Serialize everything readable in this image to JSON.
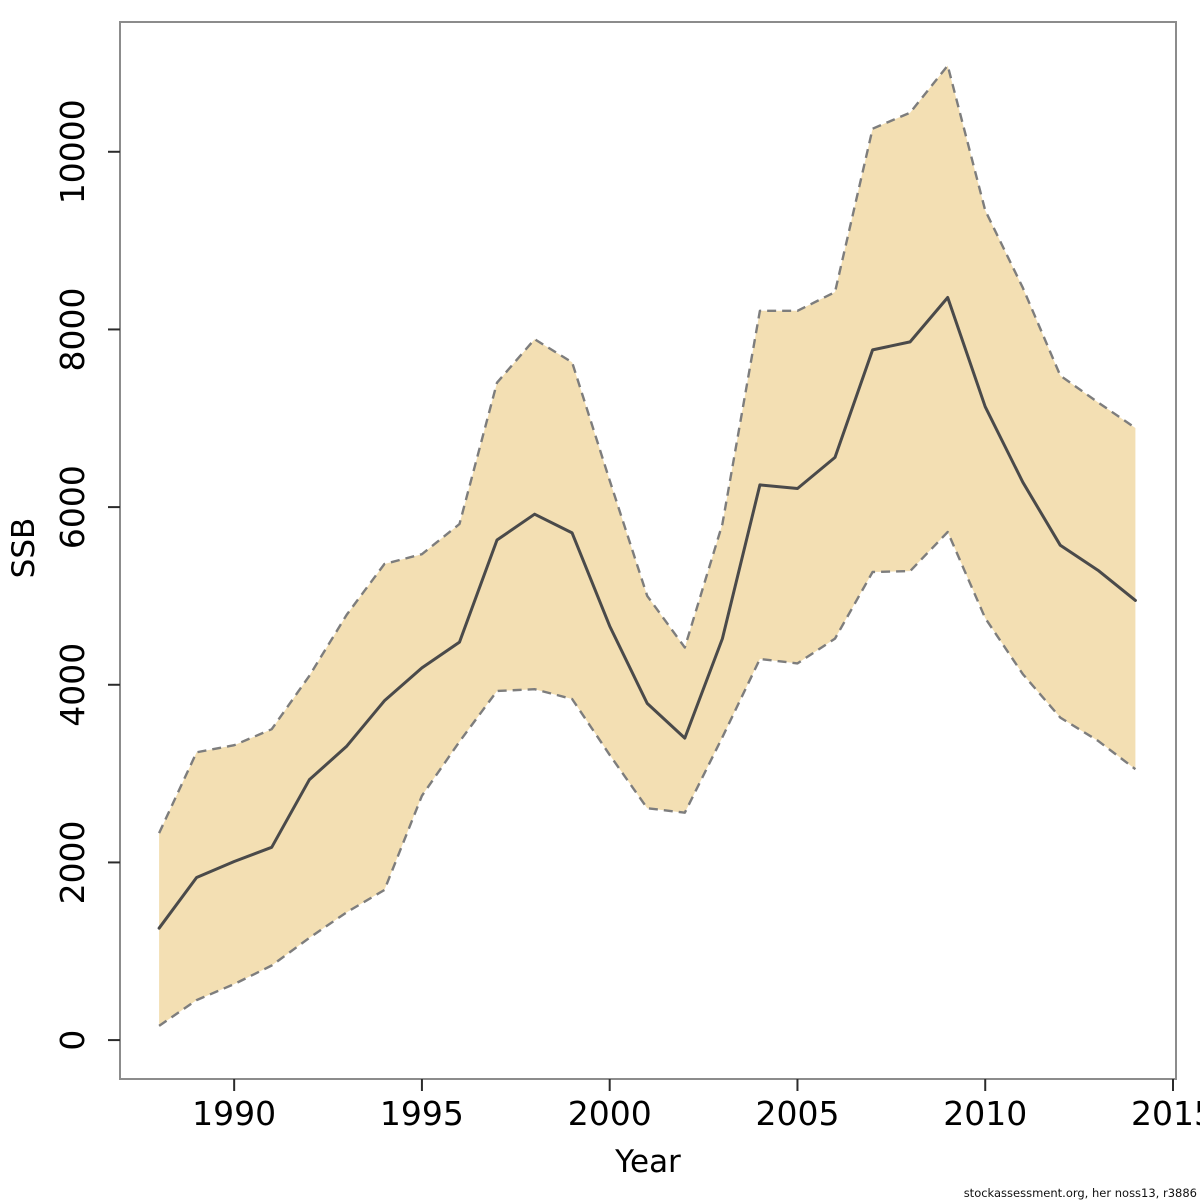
{
  "footer": {
    "text": "stockassessment.org, her noss13, r3886"
  },
  "chart_data": {
    "type": "line",
    "title": "",
    "xlabel": "Year",
    "ylabel": "SSB",
    "grid": false,
    "legend": "none",
    "x": [
      1988,
      1989,
      1990,
      1991,
      1992,
      1993,
      1994,
      1995,
      1996,
      1997,
      1998,
      1999,
      2000,
      2001,
      2002,
      2003,
      2004,
      2005,
      2006,
      2007,
      2008,
      2009,
      2010,
      2011,
      2012,
      2013,
      2014
    ],
    "series": [
      {
        "name": "SSB estimate",
        "style": "solid",
        "values": [
          1260,
          1830,
          2010,
          2170,
          2930,
          3310,
          3820,
          4190,
          4480,
          5630,
          5920,
          5710,
          4660,
          3790,
          3400,
          4520,
          6250,
          6210,
          6560,
          7770,
          7860,
          8360,
          7130,
          6280,
          5570,
          5290,
          4950
        ]
      },
      {
        "name": "confidence lower",
        "style": "dashed",
        "values": [
          160,
          450,
          630,
          840,
          1150,
          1440,
          1690,
          2750,
          3360,
          3930,
          3950,
          3840,
          3210,
          2610,
          2560,
          3410,
          4290,
          4240,
          4520,
          5270,
          5280,
          5720,
          4750,
          4120,
          3630,
          3370,
          3050
        ]
      },
      {
        "name": "confidence upper",
        "style": "dashed",
        "values": [
          2330,
          3240,
          3320,
          3500,
          4100,
          4790,
          5360,
          5470,
          5810,
          7400,
          7890,
          7630,
          6300,
          5000,
          4420,
          5810,
          8210,
          8210,
          8420,
          10260,
          10440,
          10970,
          9340,
          8470,
          7480,
          7180,
          6890
        ]
      }
    ],
    "x_ticks": [
      1990,
      1995,
      2000,
      2005,
      2010,
      2015
    ],
    "y_ticks": [
      0,
      2000,
      4000,
      6000,
      8000,
      10000
    ],
    "xlim": [
      1986.96,
      2015.08
    ],
    "ylim": [
      -438,
      11461
    ],
    "band_color": "#f3dfb3",
    "line_color": "#4a4a4a",
    "dash_color": "#7d7d7d",
    "box_color": "#8c8c8c",
    "tick_color": "#2b2b2b"
  }
}
